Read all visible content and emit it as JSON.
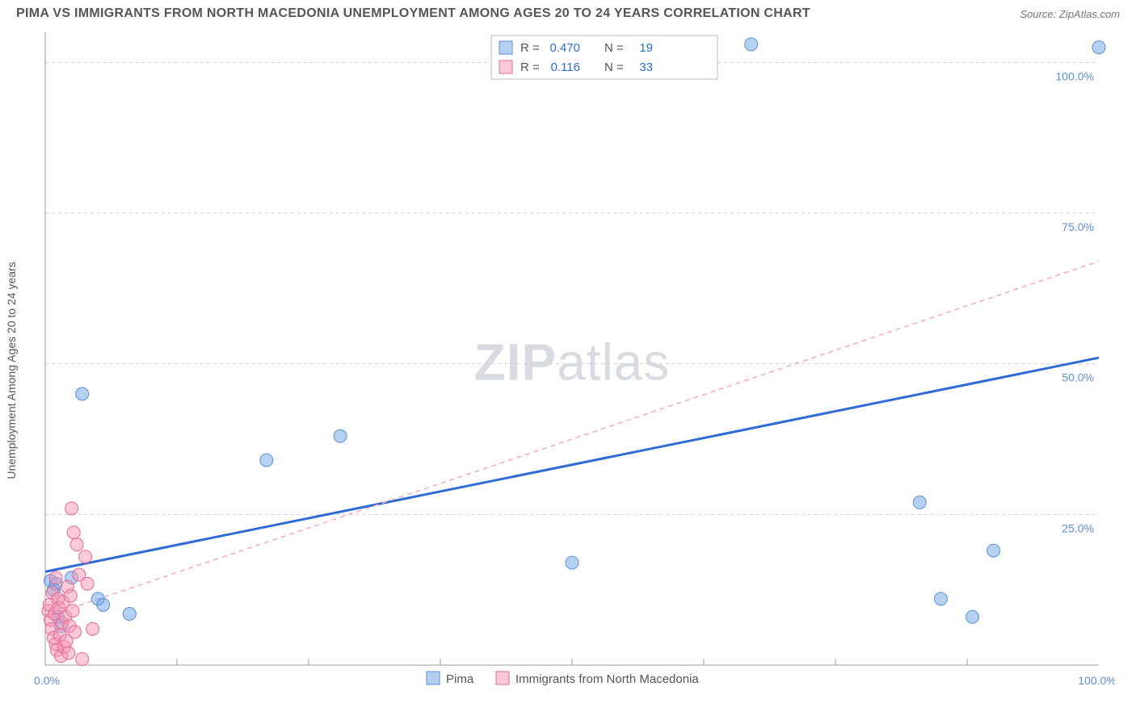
{
  "title": "PIMA VS IMMIGRANTS FROM NORTH MACEDONIA UNEMPLOYMENT AMONG AGES 20 TO 24 YEARS CORRELATION CHART",
  "source": "Source: ZipAtlas.com",
  "ylabel": "Unemployment Among Ages 20 to 24 years",
  "watermark_a": "ZIP",
  "watermark_b": "atlas",
  "chart": {
    "type": "scatter",
    "xlim": [
      0,
      100
    ],
    "ylim": [
      0,
      105
    ],
    "xtick_labels": [
      "0.0%",
      "100.0%"
    ],
    "xtick_positions": [
      0,
      100
    ],
    "ytick_labels": [
      "25.0%",
      "50.0%",
      "75.0%",
      "100.0%"
    ],
    "ytick_positions": [
      25,
      50,
      75,
      100
    ],
    "grid_y": [
      25,
      50,
      75,
      100
    ],
    "grid_x_minor": [
      12.5,
      25,
      37.5,
      50,
      62.5,
      75,
      87.5
    ],
    "background_color": "#ffffff",
    "grid_color": "#d0d0d0",
    "marker_radius": 8,
    "series": [
      {
        "name": "Pima",
        "color_fill": "rgba(120,170,230,0.55)",
        "color_stroke": "#5b8fd6",
        "r_label": "R =",
        "r_value": "0.470",
        "n_label": "N =",
        "n_value": "19",
        "trend": {
          "x1": 0,
          "y1": 15.5,
          "x2": 100,
          "y2": 51,
          "style": "solid",
          "color": "#2e6bd6",
          "width": 3
        },
        "points": [
          [
            0.5,
            14
          ],
          [
            0.8,
            12.5
          ],
          [
            1,
            13.5
          ],
          [
            1.2,
            8
          ],
          [
            1.5,
            6.5
          ],
          [
            2.5,
            14.5
          ],
          [
            3.5,
            45
          ],
          [
            5,
            11
          ],
          [
            5.5,
            10
          ],
          [
            8,
            8.5
          ],
          [
            21,
            34
          ],
          [
            28,
            38
          ],
          [
            50,
            17
          ],
          [
            67,
            103
          ],
          [
            83,
            27
          ],
          [
            85,
            11
          ],
          [
            88,
            8
          ],
          [
            90,
            19
          ],
          [
            100,
            102.5
          ]
        ]
      },
      {
        "name": "Immigrants from North Macedonia",
        "color_fill": "rgba(245,150,180,0.5)",
        "color_stroke": "#e46a96",
        "r_label": "R =",
        "r_value": "0.116",
        "n_label": "N =",
        "n_value": "33",
        "trend": {
          "x1": 0,
          "y1": 8,
          "x2": 100,
          "y2": 67,
          "style": "dashed",
          "color": "#f5a8c0",
          "width": 1.5
        },
        "points": [
          [
            0.3,
            9
          ],
          [
            0.4,
            10
          ],
          [
            0.5,
            7.5
          ],
          [
            0.6,
            6
          ],
          [
            0.7,
            12
          ],
          [
            0.8,
            4.5
          ],
          [
            0.9,
            8.5
          ],
          [
            1.0,
            3.5
          ],
          [
            1.1,
            2.5
          ],
          [
            1.2,
            11
          ],
          [
            1.3,
            9.5
          ],
          [
            1.4,
            5
          ],
          [
            1.5,
            1.5
          ],
          [
            1.6,
            7
          ],
          [
            1.7,
            10.5
          ],
          [
            1.8,
            3
          ],
          [
            1.9,
            8
          ],
          [
            2.0,
            4
          ],
          [
            2.1,
            13
          ],
          [
            2.2,
            2
          ],
          [
            2.3,
            6.5
          ],
          [
            2.4,
            11.5
          ],
          [
            2.5,
            26
          ],
          [
            2.6,
            9
          ],
          [
            2.8,
            5.5
          ],
          [
            3.0,
            20
          ],
          [
            3.2,
            15
          ],
          [
            3.5,
            1
          ],
          [
            3.8,
            18
          ],
          [
            4.0,
            13.5
          ],
          [
            4.5,
            6
          ],
          [
            2.7,
            22
          ],
          [
            1.0,
            14.5
          ]
        ]
      }
    ]
  },
  "legend_bottom": [
    {
      "label": "Pima",
      "swatch": "blue"
    },
    {
      "label": "Immigrants from North Macedonia",
      "swatch": "pink"
    }
  ]
}
